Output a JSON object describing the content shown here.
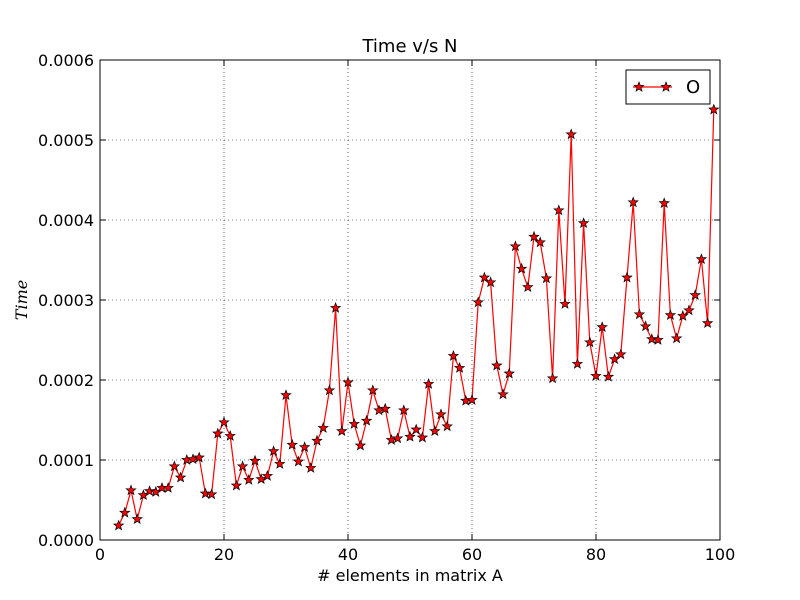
{
  "chart_data": {
    "type": "line",
    "title": "Time v/s N",
    "xlabel": "# elements in matrix A",
    "ylabel": "Time",
    "xlim": [
      0,
      100
    ],
    "ylim": [
      0,
      0.0006
    ],
    "xticks": [
      "0",
      "20",
      "40",
      "60",
      "80",
      "100"
    ],
    "yticks": [
      "0.0000",
      "0.0001",
      "0.0002",
      "0.0003",
      "0.0004",
      "0.0005",
      "0.0006"
    ],
    "grid": true,
    "legend_position": "top-right",
    "series": [
      {
        "name": "O",
        "color": "#ff0000",
        "marker": "star",
        "x": [
          3,
          4,
          5,
          6,
          7,
          8,
          9,
          10,
          11,
          12,
          13,
          14,
          15,
          16,
          17,
          18,
          19,
          20,
          21,
          22,
          23,
          24,
          25,
          26,
          27,
          28,
          29,
          30,
          31,
          32,
          33,
          34,
          35,
          36,
          37,
          38,
          39,
          40,
          41,
          42,
          43,
          44,
          45,
          46,
          47,
          48,
          49,
          50,
          51,
          52,
          53,
          54,
          55,
          56,
          57,
          58,
          59,
          60,
          61,
          62,
          63,
          64,
          65,
          66,
          67,
          68,
          69,
          70,
          71,
          72,
          73,
          74,
          75,
          76,
          77,
          78,
          79,
          80,
          81,
          82,
          83,
          84,
          85,
          86,
          87,
          88,
          89,
          90,
          91,
          92,
          93,
          94,
          95,
          96,
          97,
          98,
          99
        ],
        "values": [
          1.8e-05,
          3.4e-05,
          6.2e-05,
          2.6e-05,
          5.6e-05,
          6.1e-05,
          6e-05,
          6.5e-05,
          6.5e-05,
          9.2e-05,
          7.8e-05,
          0.0001,
          0.000101,
          0.000103,
          5.8e-05,
          5.7e-05,
          0.000133,
          0.000147,
          0.00013,
          6.8e-05,
          9.2e-05,
          7.5e-05,
          9.9e-05,
          7.6e-05,
          8e-05,
          0.000111,
          9.5e-05,
          0.000181,
          0.000119,
          9.8e-05,
          0.000116,
          9e-05,
          0.000124,
          0.00014,
          0.000187,
          0.00029,
          0.000136,
          0.000197,
          0.000145,
          0.000118,
          0.000149,
          0.000187,
          0.000162,
          0.000164,
          0.000125,
          0.000127,
          0.000162,
          0.000129,
          0.000138,
          0.000128,
          0.000195,
          0.000136,
          0.000157,
          0.000142,
          0.00023,
          0.000215,
          0.000174,
          0.000175,
          0.000297,
          0.000328,
          0.000322,
          0.000218,
          0.000182,
          0.000208,
          0.000367,
          0.000339,
          0.000316,
          0.000379,
          0.000372,
          0.000327,
          0.000202,
          0.000412,
          0.000295,
          0.000507,
          0.00022,
          0.000396,
          0.000247,
          0.000205,
          0.000266,
          0.000204,
          0.000226,
          0.000232,
          0.000328,
          0.000422,
          0.000282,
          0.000267,
          0.000251,
          0.00025,
          0.000421,
          0.000281,
          0.000252,
          0.00028,
          0.000287,
          0.000306,
          0.000351,
          0.000271,
          0.000538
        ]
      }
    ]
  }
}
